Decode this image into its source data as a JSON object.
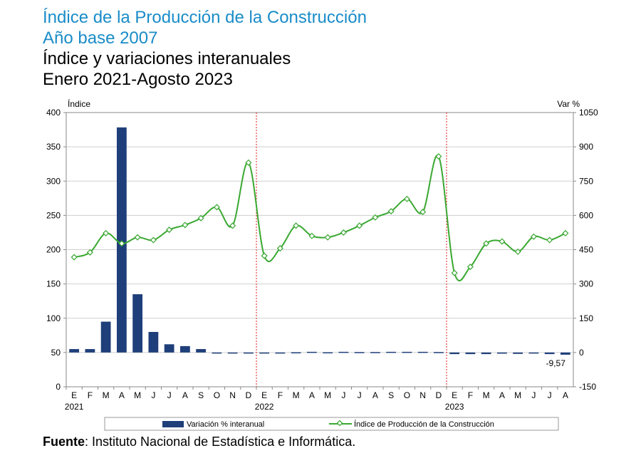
{
  "header": {
    "title": "Índice de la Producción de la Construcción",
    "subtitle": "Año base 2007",
    "heading": "Índice y variaciones interanuales",
    "period": "Enero 2021-Agosto 2023"
  },
  "source": {
    "label": "Fuente",
    "text": ": Instituto Nacional de Estadística e Informática."
  },
  "colors": {
    "bar": "#1f3f7a",
    "line": "#3aa832",
    "marker_fill": "#ffffff",
    "separator": "#e01e1e",
    "title_blue": "#1a8cc8"
  },
  "chart_data": {
    "type": "bar",
    "categories": [
      "E",
      "F",
      "M",
      "A",
      "M",
      "J",
      "J",
      "A",
      "S",
      "O",
      "N",
      "D",
      "E",
      "F",
      "M",
      "A",
      "M",
      "J",
      "J",
      "A",
      "S",
      "O",
      "N",
      "D",
      "E",
      "F",
      "M",
      "A",
      "M",
      "J",
      "J",
      "A"
    ],
    "year_labels": [
      {
        "index": 0,
        "label": "2021"
      },
      {
        "index": 12,
        "label": "2022"
      },
      {
        "index": 24,
        "label": "2023"
      }
    ],
    "series": [
      {
        "name": "Variación % interanual",
        "type": "bar",
        "axis": "right",
        "values": [
          15,
          15,
          135,
          985,
          255,
          90,
          36,
          28,
          15,
          0,
          -3,
          -4,
          -1,
          -1,
          1,
          3,
          1,
          3,
          2,
          2,
          3,
          3,
          3,
          2,
          -7,
          -7,
          -7,
          -5,
          -6,
          -4,
          -7,
          -9.57
        ]
      },
      {
        "name": "Índice de Producción de la Construcción",
        "type": "line",
        "axis": "left",
        "values": [
          189,
          196,
          224,
          209,
          218,
          214,
          229,
          236,
          246,
          262,
          235,
          327,
          191,
          202,
          235,
          220,
          218,
          225,
          235,
          247,
          256,
          274,
          255,
          336,
          166,
          175,
          209,
          212,
          197,
          219,
          214,
          224
        ]
      }
    ],
    "y_left": {
      "label": "Índice",
      "ylim": [
        0,
        400
      ],
      "ticks": [
        0,
        50,
        100,
        150,
        200,
        250,
        300,
        350,
        400
      ]
    },
    "y_right": {
      "label": "Var %",
      "ylim": [
        -150,
        1050
      ],
      "ticks": [
        -150,
        0,
        150,
        300,
        450,
        600,
        750,
        900,
        1050
      ]
    },
    "annotations": [
      {
        "index": 31,
        "text": "-9,57"
      }
    ],
    "separators_after": [
      11,
      23
    ],
    "grid": "horizontal",
    "legend": "bottom"
  }
}
